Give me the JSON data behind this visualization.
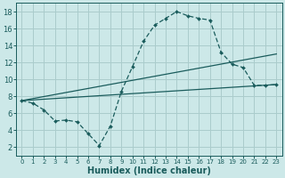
{
  "xlabel": "Humidex (Indice chaleur)",
  "bg_color": "#cce8e8",
  "grid_color": "#aacccc",
  "line_color": "#1a5c5c",
  "xlim": [
    -0.5,
    23.5
  ],
  "ylim": [
    1.0,
    19.0
  ],
  "xticks": [
    0,
    1,
    2,
    3,
    4,
    5,
    6,
    7,
    8,
    9,
    10,
    11,
    12,
    13,
    14,
    15,
    16,
    17,
    18,
    19,
    20,
    21,
    22,
    23
  ],
  "yticks": [
    2,
    4,
    6,
    8,
    10,
    12,
    14,
    16,
    18
  ],
  "line1_x": [
    0,
    1,
    2,
    3,
    4,
    5,
    6,
    7,
    8,
    9,
    10,
    11,
    12,
    13,
    14,
    15,
    16,
    17,
    18,
    19,
    20,
    21,
    22,
    23
  ],
  "line1_y": [
    7.5,
    7.2,
    6.4,
    5.1,
    5.2,
    5.0,
    3.6,
    2.2,
    4.5,
    8.6,
    11.5,
    14.5,
    16.4,
    17.2,
    18.0,
    17.5,
    17.2,
    17.0,
    13.2,
    11.8,
    11.4,
    9.3,
    9.3,
    9.4
  ],
  "line2_x": [
    0,
    23
  ],
  "line2_y": [
    7.5,
    13.0
  ],
  "line3_x": [
    0,
    23
  ],
  "line3_y": [
    7.5,
    9.4
  ],
  "xlabel_fontsize": 7,
  "tick_fontsize_x": 5,
  "tick_fontsize_y": 6
}
